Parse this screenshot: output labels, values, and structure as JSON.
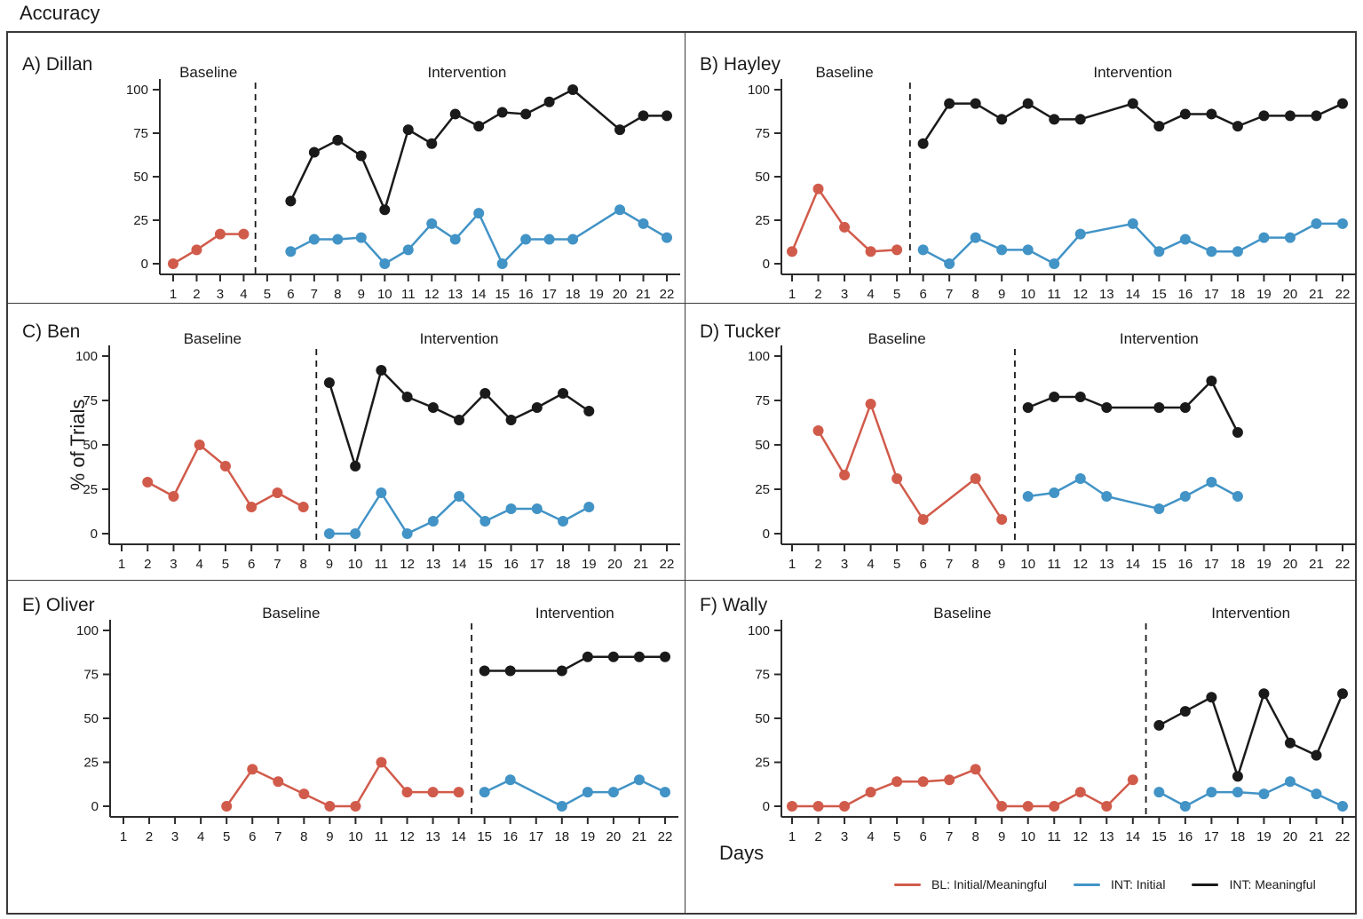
{
  "figure_title": "Accuracy",
  "ylabel": "% of Trials",
  "xlabel": "Days",
  "colors": {
    "baseline_series": "#D15B4B",
    "int_initial_series": "#4293C6",
    "int_meaningful_series": "#1A1A1A",
    "axis": "#2B2B2B"
  },
  "legend": [
    {
      "label": "BL: Initial/Meaningful",
      "color": "#D15B4B"
    },
    {
      "label": "INT: Initial",
      "color": "#4293C6"
    },
    {
      "label": "INT: Meaningful",
      "color": "#1A1A1A"
    }
  ],
  "axes": {
    "ylim": [
      0,
      100
    ],
    "y_ticks": [
      0,
      25,
      50,
      75,
      100
    ],
    "x_ticks": [
      1,
      2,
      3,
      4,
      5,
      6,
      7,
      8,
      9,
      10,
      11,
      12,
      13,
      14,
      15,
      16,
      17,
      18,
      19,
      20,
      21,
      22
    ]
  },
  "chart_data": [
    {
      "type": "line",
      "panel": "A",
      "title": "A) Dillan",
      "phase_change_x": 4.5,
      "phases": {
        "baseline": {
          "label": "Baseline",
          "center_day": 2.5
        },
        "intervention": {
          "label": "Intervention",
          "center_day": 13.5
        }
      },
      "series": [
        {
          "name": "BL: Initial/Meaningful",
          "color": "#D15B4B",
          "points": [
            [
              1,
              0
            ],
            [
              2,
              8
            ],
            [
              3,
              17
            ],
            [
              4,
              17
            ]
          ]
        },
        {
          "name": "INT: Initial",
          "color": "#4293C6",
          "points": [
            [
              6,
              7
            ],
            [
              7,
              14
            ],
            [
              8,
              14
            ],
            [
              9,
              15
            ],
            [
              10,
              0
            ],
            [
              11,
              8
            ],
            [
              12,
              23
            ],
            [
              13,
              14
            ],
            [
              14,
              29
            ],
            [
              15,
              0
            ],
            [
              16,
              14
            ],
            [
              17,
              14
            ],
            [
              18,
              14
            ],
            [
              20,
              31
            ],
            [
              21,
              23
            ],
            [
              22,
              15
            ]
          ]
        },
        {
          "name": "INT: Meaningful",
          "color": "#1A1A1A",
          "points": [
            [
              6,
              36
            ],
            [
              7,
              64
            ],
            [
              8,
              71
            ],
            [
              9,
              62
            ],
            [
              10,
              31
            ],
            [
              11,
              77
            ],
            [
              12,
              69
            ],
            [
              13,
              86
            ],
            [
              14,
              79
            ],
            [
              15,
              87
            ],
            [
              16,
              86
            ],
            [
              17,
              93
            ],
            [
              18,
              100
            ],
            [
              20,
              77
            ],
            [
              21,
              85
            ],
            [
              22,
              85
            ]
          ]
        }
      ]
    },
    {
      "type": "line",
      "panel": "B",
      "title": "B) Hayley",
      "phase_change_x": 5.5,
      "phases": {
        "baseline": {
          "label": "Baseline",
          "center_day": 3
        },
        "intervention": {
          "label": "Intervention",
          "center_day": 14
        }
      },
      "series": [
        {
          "name": "BL: Initial/Meaningful",
          "color": "#D15B4B",
          "points": [
            [
              1,
              7
            ],
            [
              2,
              43
            ],
            [
              3,
              21
            ],
            [
              4,
              7
            ],
            [
              5,
              8
            ]
          ]
        },
        {
          "name": "INT: Initial",
          "color": "#4293C6",
          "points": [
            [
              6,
              8
            ],
            [
              7,
              0
            ],
            [
              8,
              15
            ],
            [
              9,
              8
            ],
            [
              10,
              8
            ],
            [
              11,
              0
            ],
            [
              12,
              17
            ],
            [
              14,
              23
            ],
            [
              15,
              7
            ],
            [
              16,
              14
            ],
            [
              17,
              7
            ],
            [
              18,
              7
            ],
            [
              19,
              15
            ],
            [
              20,
              15
            ],
            [
              21,
              23
            ],
            [
              22,
              23
            ]
          ]
        },
        {
          "name": "INT: Meaningful",
          "color": "#1A1A1A",
          "points": [
            [
              6,
              69
            ],
            [
              7,
              92
            ],
            [
              8,
              92
            ],
            [
              9,
              83
            ],
            [
              10,
              92
            ],
            [
              11,
              83
            ],
            [
              12,
              83
            ],
            [
              14,
              92
            ],
            [
              15,
              79
            ],
            [
              16,
              86
            ],
            [
              17,
              86
            ],
            [
              18,
              79
            ],
            [
              19,
              85
            ],
            [
              20,
              85
            ],
            [
              21,
              85
            ],
            [
              22,
              92
            ]
          ]
        }
      ]
    },
    {
      "type": "line",
      "panel": "C",
      "title": "C) Ben",
      "phase_change_x": 8.5,
      "phases": {
        "baseline": {
          "label": "Baseline",
          "center_day": 4.5
        },
        "intervention": {
          "label": "Intervention",
          "center_day": 14
        }
      },
      "series": [
        {
          "name": "BL: Initial/Meaningful",
          "color": "#D15B4B",
          "points": [
            [
              2,
              29
            ],
            [
              3,
              21
            ],
            [
              4,
              50
            ],
            [
              5,
              38
            ],
            [
              6,
              15
            ],
            [
              7,
              23
            ],
            [
              8,
              15
            ]
          ]
        },
        {
          "name": "INT: Initial",
          "color": "#4293C6",
          "points": [
            [
              9,
              0
            ],
            [
              10,
              0
            ],
            [
              11,
              23
            ],
            [
              12,
              0
            ],
            [
              13,
              7
            ],
            [
              14,
              21
            ],
            [
              15,
              7
            ],
            [
              16,
              14
            ],
            [
              17,
              14
            ],
            [
              18,
              7
            ],
            [
              19,
              15
            ]
          ]
        },
        {
          "name": "INT: Meaningful",
          "color": "#1A1A1A",
          "points": [
            [
              9,
              85
            ],
            [
              10,
              38
            ],
            [
              11,
              92
            ],
            [
              12,
              77
            ],
            [
              13,
              71
            ],
            [
              14,
              64
            ],
            [
              15,
              79
            ],
            [
              16,
              64
            ],
            [
              17,
              71
            ],
            [
              18,
              79
            ],
            [
              19,
              69
            ]
          ]
        }
      ]
    },
    {
      "type": "line",
      "panel": "D",
      "title": "D) Tucker",
      "phase_change_x": 9.5,
      "phases": {
        "baseline": {
          "label": "Baseline",
          "center_day": 5
        },
        "intervention": {
          "label": "Intervention",
          "center_day": 15
        }
      },
      "series": [
        {
          "name": "BL: Initial/Meaningful",
          "color": "#D15B4B",
          "points": [
            [
              2,
              58
            ],
            [
              3,
              33
            ],
            [
              4,
              73
            ],
            [
              5,
              31
            ],
            [
              6,
              8
            ],
            [
              8,
              31
            ],
            [
              9,
              8
            ]
          ]
        },
        {
          "name": "INT: Initial",
          "color": "#4293C6",
          "points": [
            [
              10,
              21
            ],
            [
              11,
              23
            ],
            [
              12,
              31
            ],
            [
              13,
              21
            ],
            [
              15,
              14
            ],
            [
              16,
              21
            ],
            [
              17,
              29
            ],
            [
              18,
              21
            ]
          ]
        },
        {
          "name": "INT: Meaningful",
          "color": "#1A1A1A",
          "points": [
            [
              10,
              71
            ],
            [
              11,
              77
            ],
            [
              12,
              77
            ],
            [
              13,
              71
            ],
            [
              15,
              71
            ],
            [
              16,
              71
            ],
            [
              17,
              86
            ],
            [
              18,
              57
            ]
          ]
        }
      ]
    },
    {
      "type": "line",
      "panel": "E",
      "title": "E) Oliver",
      "phase_change_x": 14.5,
      "phases": {
        "baseline": {
          "label": "Baseline",
          "center_day": 7.5
        },
        "intervention": {
          "label": "Intervention",
          "center_day": 18.5
        }
      },
      "series": [
        {
          "name": "BL: Initial/Meaningful",
          "color": "#D15B4B",
          "points": [
            [
              5,
              0
            ],
            [
              6,
              21
            ],
            [
              7,
              14
            ],
            [
              8,
              7
            ],
            [
              9,
              0
            ],
            [
              10,
              0
            ],
            [
              11,
              25
            ],
            [
              12,
              8
            ],
            [
              13,
              8
            ],
            [
              14,
              8
            ]
          ]
        },
        {
          "name": "INT: Initial",
          "color": "#4293C6",
          "points": [
            [
              15,
              8
            ],
            [
              16,
              15
            ],
            [
              18,
              0
            ],
            [
              19,
              8
            ],
            [
              20,
              8
            ],
            [
              21,
              15
            ],
            [
              22,
              8
            ]
          ]
        },
        {
          "name": "INT: Meaningful",
          "color": "#1A1A1A",
          "points": [
            [
              15,
              77
            ],
            [
              16,
              77
            ],
            [
              18,
              77
            ],
            [
              19,
              85
            ],
            [
              20,
              85
            ],
            [
              21,
              85
            ],
            [
              22,
              85
            ]
          ]
        }
      ]
    },
    {
      "type": "line",
      "panel": "F",
      "title": "F) Wally",
      "phase_change_x": 14.5,
      "phases": {
        "baseline": {
          "label": "Baseline",
          "center_day": 7.5
        },
        "intervention": {
          "label": "Intervention",
          "center_day": 18.5
        }
      },
      "series": [
        {
          "name": "BL: Initial/Meaningful",
          "color": "#D15B4B",
          "points": [
            [
              1,
              0
            ],
            [
              2,
              0
            ],
            [
              3,
              0
            ],
            [
              4,
              8
            ],
            [
              5,
              14
            ],
            [
              6,
              14
            ],
            [
              7,
              15
            ],
            [
              8,
              21
            ],
            [
              9,
              0
            ],
            [
              10,
              0
            ],
            [
              11,
              0
            ],
            [
              12,
              8
            ],
            [
              13,
              0
            ],
            [
              14,
              15
            ]
          ]
        },
        {
          "name": "INT: Initial",
          "color": "#4293C6",
          "points": [
            [
              15,
              8
            ],
            [
              16,
              0
            ],
            [
              17,
              8
            ],
            [
              18,
              8
            ],
            [
              19,
              7
            ],
            [
              20,
              14
            ],
            [
              21,
              7
            ],
            [
              22,
              0
            ]
          ]
        },
        {
          "name": "INT: Meaningful",
          "color": "#1A1A1A",
          "points": [
            [
              15,
              46
            ],
            [
              16,
              54
            ],
            [
              17,
              62
            ],
            [
              18,
              17
            ],
            [
              19,
              64
            ],
            [
              20,
              36
            ],
            [
              21,
              29
            ],
            [
              22,
              64
            ]
          ]
        }
      ]
    }
  ]
}
